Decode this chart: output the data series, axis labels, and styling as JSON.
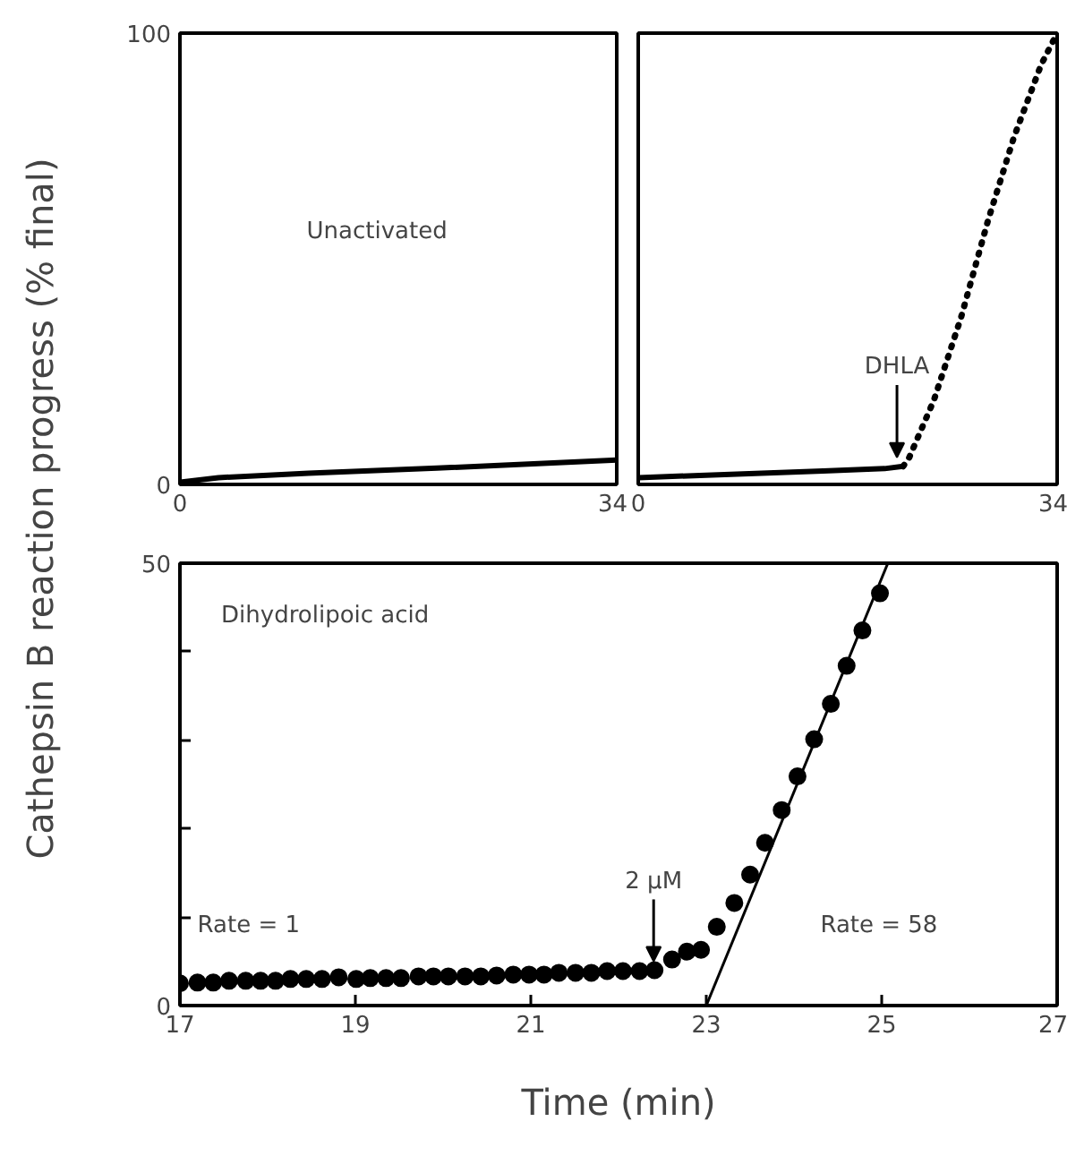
{
  "chart_data": [
    {
      "type": "line",
      "xlim": [
        0,
        34
      ],
      "ylim": [
        0,
        100
      ],
      "xticks": [
        0,
        34
      ],
      "yticks": [
        0,
        100
      ],
      "grid": false,
      "line_style": "solid",
      "series": [
        {
          "color": "#000000",
          "x": [
            0,
            3,
            10,
            20,
            34
          ],
          "values": [
            0.5,
            1.5,
            2.5,
            3.6,
            5.4
          ]
        }
      ],
      "annotations": [
        "Unactivated"
      ]
    },
    {
      "type": "line",
      "xlim": [
        0,
        34
      ],
      "ylim": [
        0,
        100
      ],
      "xticks": [
        0,
        34
      ],
      "yticks": [
        {
          "value": 0,
          "label": null
        },
        {
          "value": 100,
          "label": null
        }
      ],
      "tick_labels": "x",
      "grid": false,
      "series": [
        {
          "color": "#000000",
          "line_style": "solid",
          "x": [
            0,
            5,
            10,
            15,
            20,
            21.5
          ],
          "values": [
            1.5,
            2.0,
            2.5,
            3.0,
            3.5,
            4.0
          ]
        },
        {
          "color": "#000000",
          "line_style": "dotted",
          "x": [
            21.5,
            22,
            24,
            26.2,
            28.4,
            30.5,
            32.7,
            34
          ],
          "values": [
            4,
            6,
            18.7,
            37,
            58.6,
            77,
            93,
            100
          ]
        }
      ],
      "annotations": [
        {
          "text": "DHLA",
          "x": 21,
          "y": 4
        }
      ]
    },
    {
      "type": "scatter",
      "xlim": [
        17,
        27
      ],
      "ylim": [
        0,
        50
      ],
      "xticks": [
        17,
        19,
        21,
        23,
        25,
        27
      ],
      "yticks": [
        0,
        {
          "value": 10,
          "label": null
        },
        {
          "value": 20,
          "label": null
        },
        {
          "value": 30,
          "label": null
        },
        {
          "value": 40,
          "label": null
        },
        50
      ],
      "grid": false,
      "xlabel": "Time (min)",
      "ylabel": "Cathepsin B reaction progress (% final)",
      "series": [
        {
          "color": "#000000",
          "marker": "circle",
          "x": [
            17.0,
            17.2,
            17.38,
            17.56,
            17.75,
            17.92,
            18.09,
            18.26,
            18.44,
            18.62,
            18.81,
            19.01,
            19.17,
            19.35,
            19.52,
            19.72,
            19.89,
            20.06,
            20.25,
            20.43,
            20.61,
            20.8,
            20.98,
            21.15,
            21.32,
            21.51,
            21.69,
            21.87,
            22.05,
            22.24,
            22.41,
            22.61,
            22.78,
            22.94,
            23.12,
            23.32,
            23.5,
            23.67,
            23.86,
            24.04,
            24.23,
            24.42,
            24.6,
            24.78,
            24.98
          ],
          "values": [
            2.5,
            2.6,
            2.6,
            2.8,
            2.8,
            2.8,
            2.8,
            3.0,
            3.0,
            3.0,
            3.2,
            3.0,
            3.1,
            3.1,
            3.1,
            3.3,
            3.3,
            3.3,
            3.3,
            3.3,
            3.4,
            3.5,
            3.5,
            3.5,
            3.7,
            3.7,
            3.7,
            3.9,
            3.9,
            3.9,
            4.0,
            5.2,
            6.1,
            6.3,
            8.9,
            11.6,
            14.8,
            18.4,
            22.1,
            25.9,
            30.1,
            34.1,
            38.4,
            42.4,
            46.6
          ]
        },
        {
          "type": "line",
          "color": "#000000",
          "x": [
            23,
            25.07
          ],
          "values": [
            0,
            50
          ]
        }
      ],
      "annotations": [
        "Dihydrolipoic acid",
        "Rate = 1",
        "Rate = 58",
        {
          "text": "2 µM",
          "x": 22.4,
          "y": 4.0
        }
      ]
    }
  ]
}
